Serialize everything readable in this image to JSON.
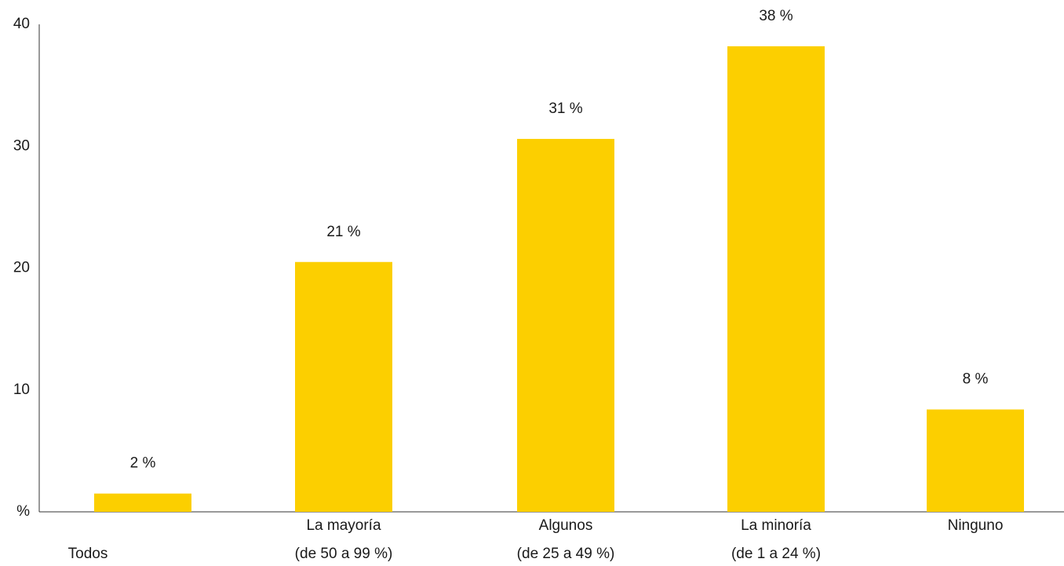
{
  "chart_data": {
    "type": "bar",
    "categories": [
      [
        "Todos"
      ],
      [
        "La mayoría",
        "(de 50 a 99 %)"
      ],
      [
        "Algunos",
        "(de 25 a 49 %)"
      ],
      [
        "La minoría",
        "(de 1 a 24 %)"
      ],
      [
        "Ninguno"
      ]
    ],
    "values": [
      1.5,
      20.5,
      30.6,
      38.2,
      8.4
    ],
    "value_labels": [
      "2 %",
      "21 %",
      "31 %",
      "38 %",
      "8 %"
    ],
    "color": "#fccf00",
    "ylim": [
      0,
      40
    ],
    "yticks": [
      {
        "value": 0,
        "label": "%"
      },
      10,
      20,
      30,
      40
    ],
    "grid": false
  }
}
